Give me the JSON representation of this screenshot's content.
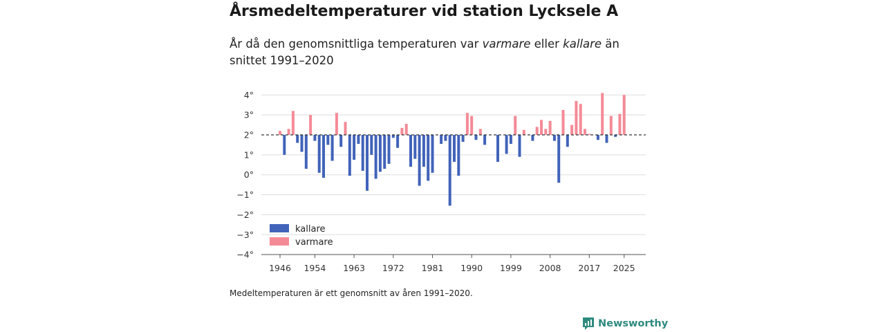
{
  "header": {
    "title": "Årsmedeltemperaturer vid station Lycksele A",
    "subtitle_pre": "År då den genomsnittliga temperaturen var ",
    "subtitle_warm": "varmare",
    "subtitle_mid": " eller ",
    "subtitle_cold": "kallare",
    "subtitle_post": " än snittet 1991–2020"
  },
  "footnote": "Medeltemperaturen är ett genomsnitt av åren 1991–2020.",
  "brand": {
    "name": "Newsworthy",
    "icon": "newsworthy-logo-icon",
    "color": "#2e8a7f"
  },
  "colors": {
    "cold": "#4163b9",
    "warm": "#f58a97",
    "grid": "#dddddd",
    "axis": "#555555"
  },
  "chart_data": {
    "type": "bar",
    "title": "Årsmedeltemperaturer vid station Lycksele A",
    "subtitle": "År då den genomsnittliga temperaturen var varmare eller kallare än snittet 1991–2020",
    "xlabel": "",
    "ylabel": "",
    "baseline": 2.0,
    "baseline_style": "dashed",
    "ylim": [
      -4,
      4.3
    ],
    "y_ticks": [
      4,
      3,
      2,
      1,
      0,
      -1,
      -2,
      -3,
      -4
    ],
    "y_tick_labels": [
      "4°",
      "3°",
      "2°",
      "1°",
      "0°",
      "−1°",
      "−2°",
      "−3°",
      "−4°"
    ],
    "x_ticks": [
      1946,
      1954,
      1963,
      1972,
      1981,
      1990,
      1999,
      2008,
      2017,
      2025
    ],
    "x_tick_labels": [
      "1946",
      "1954",
      "1963",
      "1972",
      "1981",
      "1990",
      "1999",
      "2008",
      "2017",
      "2025"
    ],
    "grid": true,
    "legend": {
      "position": "bottom-left",
      "entries": [
        {
          "label": "kallare",
          "series": "cold"
        },
        {
          "label": "varmare",
          "series": "warm"
        }
      ]
    },
    "years": [
      1945,
      1946,
      1947,
      1948,
      1949,
      1950,
      1951,
      1952,
      1953,
      1954,
      1955,
      1956,
      1957,
      1958,
      1959,
      1960,
      1961,
      1962,
      1963,
      1964,
      1965,
      1966,
      1967,
      1968,
      1969,
      1970,
      1971,
      1972,
      1973,
      1974,
      1975,
      1976,
      1977,
      1978,
      1979,
      1980,
      1981,
      1982,
      1983,
      1984,
      1985,
      1986,
      1987,
      1988,
      1989,
      1990,
      1991,
      1992,
      1993,
      1994,
      1995,
      1996,
      1997,
      1998,
      1999,
      2000,
      2001,
      2002,
      2003,
      2004,
      2005,
      2006,
      2007,
      2008,
      2009,
      2010,
      2011,
      2012,
      2013,
      2014,
      2015,
      2016,
      2017,
      2018,
      2019,
      2020,
      2021,
      2022,
      2023,
      2024,
      2025
    ],
    "values": [
      2.0,
      2.2,
      1.0,
      2.3,
      3.2,
      1.6,
      1.15,
      0.3,
      3.0,
      1.7,
      0.1,
      -0.15,
      1.5,
      0.7,
      3.1,
      1.4,
      2.65,
      -0.05,
      0.75,
      1.55,
      0.2,
      -0.8,
      1.0,
      -0.2,
      0.15,
      0.3,
      0.55,
      1.85,
      1.35,
      2.35,
      2.55,
      0.4,
      0.8,
      -0.55,
      0.4,
      -0.3,
      0.1,
      2.0,
      1.55,
      1.7,
      -1.55,
      0.65,
      -0.05,
      1.65,
      3.1,
      2.95,
      1.75,
      2.3,
      1.5,
      2.0,
      2.0,
      0.65,
      2.0,
      1.05,
      1.55,
      2.95,
      0.9,
      2.25,
      2.0,
      1.7,
      2.4,
      2.75,
      2.3,
      2.7,
      1.7,
      -0.4,
      3.25,
      1.4,
      2.5,
      3.7,
      3.55,
      2.3,
      2.05,
      2.0,
      1.75,
      4.1,
      1.6,
      2.95,
      1.9,
      3.05,
      4.0
    ]
  }
}
